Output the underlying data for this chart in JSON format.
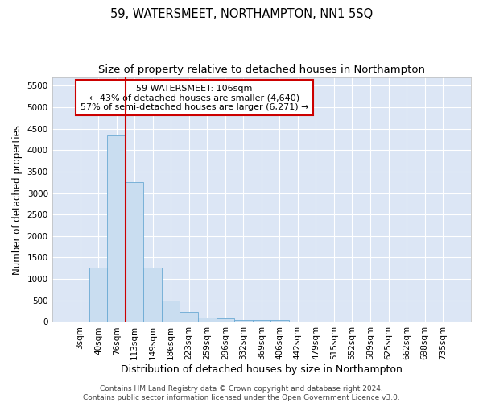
{
  "title": "59, WATERSMEET, NORTHAMPTON, NN1 5SQ",
  "subtitle": "Size of property relative to detached houses in Northampton",
  "xlabel": "Distribution of detached houses by size in Northampton",
  "ylabel": "Number of detached properties",
  "bin_labels": [
    "3sqm",
    "40sqm",
    "76sqm",
    "113sqm",
    "149sqm",
    "186sqm",
    "223sqm",
    "259sqm",
    "296sqm",
    "332sqm",
    "369sqm",
    "406sqm",
    "442sqm",
    "479sqm",
    "515sqm",
    "552sqm",
    "589sqm",
    "625sqm",
    "662sqm",
    "698sqm",
    "735sqm"
  ],
  "bar_heights": [
    0,
    1270,
    4350,
    3250,
    1270,
    490,
    225,
    100,
    75,
    50,
    50,
    50,
    0,
    0,
    0,
    0,
    0,
    0,
    0,
    0,
    0
  ],
  "bar_color": "#c9ddf0",
  "bar_edge_color": "#6aaad4",
  "background_color": "#dce6f5",
  "grid_color": "#ffffff",
  "vline_x": 2.5,
  "vline_color": "#cc0000",
  "annotation_text": "59 WATERSMEET: 106sqm\n← 43% of detached houses are smaller (4,640)\n57% of semi-detached houses are larger (6,271) →",
  "annotation_box_facecolor": "#ffffff",
  "annotation_box_edgecolor": "#cc0000",
  "ylim": [
    0,
    5700
  ],
  "yticks": [
    0,
    500,
    1000,
    1500,
    2000,
    2500,
    3000,
    3500,
    4000,
    4500,
    5000,
    5500
  ],
  "footer_text": "Contains HM Land Registry data © Crown copyright and database right 2024.\nContains public sector information licensed under the Open Government Licence v3.0.",
  "title_fontsize": 10.5,
  "subtitle_fontsize": 9.5,
  "xlabel_fontsize": 9,
  "ylabel_fontsize": 8.5,
  "tick_fontsize": 7.5,
  "annotation_fontsize": 8,
  "footer_fontsize": 6.5
}
